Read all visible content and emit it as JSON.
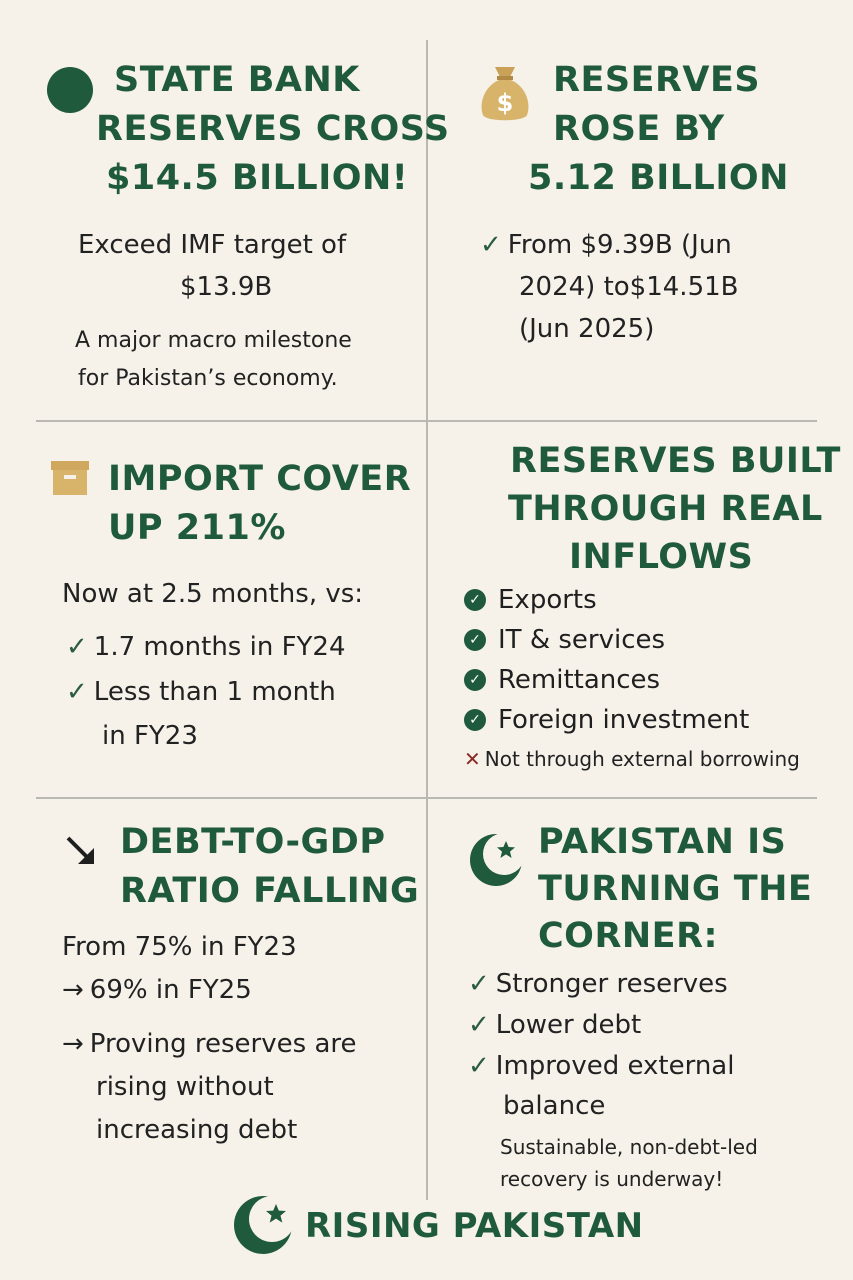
{
  "panel1": {
    "title": [
      "STATE BANK",
      "RESERVES CROSS",
      "$14.5 BILLION!"
    ],
    "lines": [
      "Exceed IMF target of",
      "$13.9B"
    ],
    "note": [
      "A major macro milestone",
      "for Pakistan’s economy."
    ],
    "icon": "green-circle-icon"
  },
  "panel2": {
    "title": [
      "RESERVES",
      "ROSE BY",
      "5.12 BILLION"
    ],
    "lines": [
      "From $9.39B (Jun",
      "2024) to$14.51B",
      "(Jun 2025)"
    ],
    "icon": "money-bag-icon"
  },
  "panel3": {
    "title": [
      "IMPORT COVER",
      "UP 211%"
    ],
    "intro": "Now at 2.5 months, vs:",
    "items": [
      "1.7 months in FY24",
      "Less than 1 month",
      "in FY23"
    ],
    "icon": "box-icon"
  },
  "panel4": {
    "title": [
      "RESERVES BUILT",
      "THROUGH REAL",
      "INFLOWS"
    ],
    "items": [
      "Exports",
      "IT & services",
      "Remittances",
      "Foreign investment"
    ],
    "exclusion": "Not through external borrowing"
  },
  "panel5": {
    "title": [
      "DEBT-TO-GDP",
      "RATIO FALLING"
    ],
    "lines": [
      "From 75% in FY23",
      "69% in FY25"
    ],
    "note": [
      "Proving reserves are",
      "rising without",
      "increasing debt"
    ],
    "icon": "trend-down-arrow-icon"
  },
  "panel6": {
    "title": [
      "PAKISTAN IS",
      "TURNING THE",
      "CORNER:"
    ],
    "items": [
      "Stronger reserves",
      "Lower debt",
      "Improved external",
      "balance"
    ],
    "note": [
      "Sustainable, non-debt-led",
      "recovery is underway!"
    ],
    "icon": "crescent-star-icon"
  },
  "footer": {
    "label": "RISING PAKISTAN",
    "icon": "crescent-star-icon"
  },
  "colors": {
    "background": "#f6f2ea",
    "accent_green": "#1f5a3c",
    "gold": "#d7b46a",
    "cross_red": "#8c2a25"
  }
}
